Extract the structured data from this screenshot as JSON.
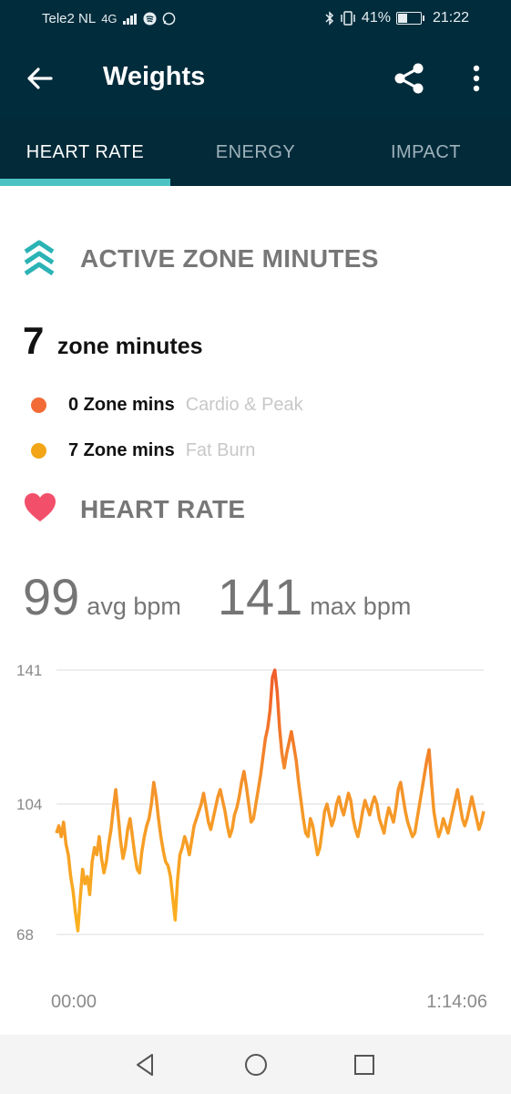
{
  "status_bar": {
    "carrier": "Tele2 NL",
    "network": "4G",
    "battery": "41%",
    "time": "21:22",
    "icons": [
      "signal-icon",
      "spotify-icon",
      "whatsapp-icon",
      "bluetooth-icon",
      "vibrate-icon",
      "battery-icon"
    ]
  },
  "app_bar": {
    "title": "Weights",
    "back_icon": "arrow-left-icon",
    "share_icon": "share-icon",
    "more_icon": "more-vert-icon"
  },
  "tabs": [
    {
      "label": "HEART RATE",
      "active": true
    },
    {
      "label": "ENERGY",
      "active": false
    },
    {
      "label": "IMPACT",
      "active": false
    }
  ],
  "active_zone": {
    "heading": "ACTIVE ZONE MINUTES",
    "total": "7",
    "total_label": "zone minutes",
    "zones": [
      {
        "mins": "0 Zone mins",
        "name": "Cardio & Peak",
        "color": "#f26b36"
      },
      {
        "mins": "7 Zone mins",
        "name": "Fat Burn",
        "color": "#f2a516"
      }
    ]
  },
  "heart_rate": {
    "heading": "HEART RATE",
    "avg": "99",
    "avg_unit": "avg bpm",
    "max": "141",
    "max_unit": "max bpm"
  },
  "chart_data": {
    "type": "line",
    "y_ticks": [
      141,
      104,
      68
    ],
    "x_labels": [
      "00:00",
      "1:14:06"
    ],
    "ylim": [
      68,
      141
    ],
    "series": [
      {
        "values": [
          96,
          98,
          95,
          99,
          93,
          90,
          84,
          80,
          74,
          69,
          78,
          86,
          82,
          84,
          79,
          88,
          92,
          90,
          95,
          89,
          85,
          88,
          93,
          97,
          103,
          108,
          101,
          94,
          89,
          92,
          97,
          100,
          95,
          90,
          86,
          85,
          91,
          95,
          98,
          100,
          104,
          110,
          106,
          100,
          95,
          91,
          88,
          87,
          84,
          78,
          72,
          83,
          90,
          92,
          95,
          93,
          90,
          94,
          98,
          100,
          102,
          104,
          107,
          103,
          99,
          97,
          100,
          103,
          106,
          108,
          105,
          102,
          98,
          95,
          97,
          101,
          103,
          106,
          110,
          113,
          109,
          104,
          99,
          100,
          104,
          108,
          112,
          117,
          122,
          125,
          130,
          139,
          141,
          135,
          125,
          118,
          114,
          118,
          121,
          124,
          120,
          116,
          110,
          105,
          100,
          96,
          95,
          100,
          98,
          94,
          90,
          92,
          97,
          102,
          104,
          101,
          98,
          100,
          104,
          106,
          103,
          101,
          104,
          107,
          105,
          100,
          97,
          95,
          98,
          102,
          105,
          103,
          101,
          104,
          106,
          104,
          100,
          98,
          96,
          100,
          103,
          101,
          99,
          103,
          108,
          110,
          106,
          102,
          99,
          97,
          95,
          96,
          100,
          104,
          108,
          112,
          116,
          119,
          110,
          102,
          98,
          95,
          97,
          100,
          98,
          96,
          99,
          102,
          105,
          108,
          104,
          100,
          98,
          100,
          103,
          106,
          103,
          100,
          97,
          99,
          102
        ]
      }
    ]
  },
  "nav_bar": {
    "icons": [
      "nav-back-icon",
      "nav-home-icon",
      "nav-recents-icon"
    ]
  }
}
